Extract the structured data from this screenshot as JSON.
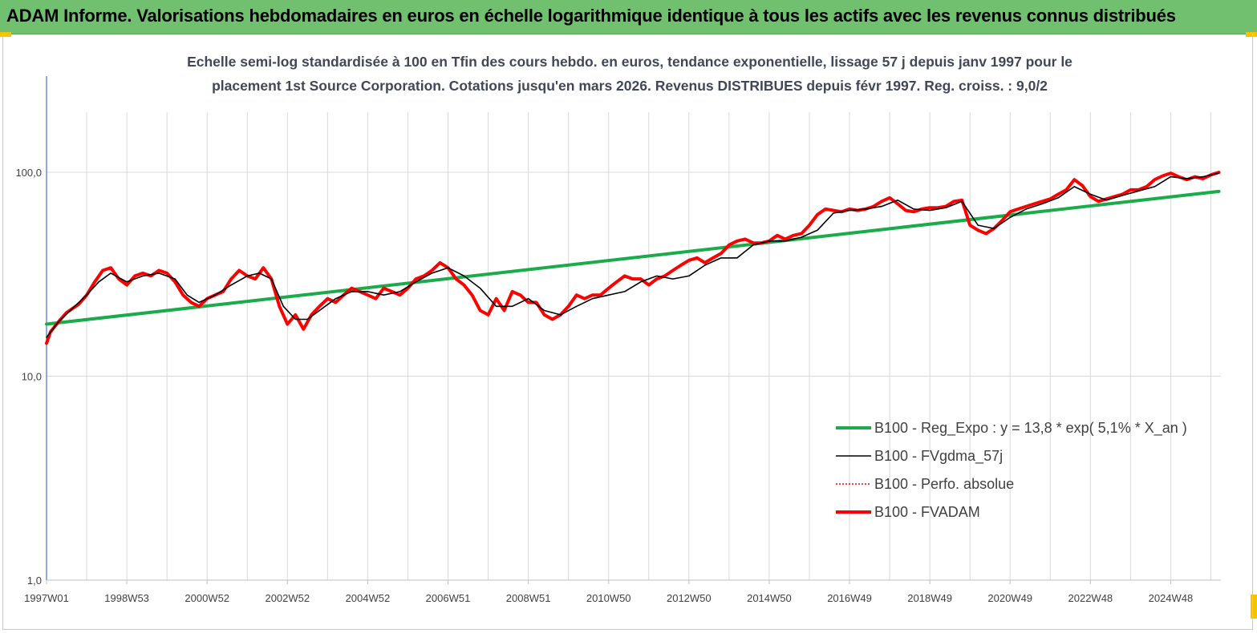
{
  "header": {
    "title": "ADAM Informe. Valorisations hebdomadaires en euros en échelle logarithmique identique à tous les actifs avec les revenus connus distribués"
  },
  "chart_data": {
    "type": "line",
    "title_line1": "Echelle semi-log standardisée à 100 en Tfin des cours hebdo. en euros, tendance exponentielle, lissage 57 j depuis janv 1997 pour le",
    "title_line2": "placement 1st Source Corporation. Cotations jusqu'en mars 2026. Revenus DISTRIBUES depuis févr 1997. Reg. croiss. : 9,0/2",
    "y_scale": "log",
    "ylim": [
      1,
      180
    ],
    "y_ticks": [
      {
        "value": 1,
        "label": "1,0"
      },
      {
        "value": 10,
        "label": "10,0"
      },
      {
        "value": 100,
        "label": "100,0"
      }
    ],
    "xlim": [
      1997.0,
      2026.25
    ],
    "x_ticks": [
      {
        "x": 1997.0,
        "label": "1997W01"
      },
      {
        "x": 1999.0,
        "label": "1998W53"
      },
      {
        "x": 2001.0,
        "label": "2000W52"
      },
      {
        "x": 2003.0,
        "label": "2002W52"
      },
      {
        "x": 2005.0,
        "label": "2004W52"
      },
      {
        "x": 2007.0,
        "label": "2006W51"
      },
      {
        "x": 2009.0,
        "label": "2008W51"
      },
      {
        "x": 2011.0,
        "label": "2010W50"
      },
      {
        "x": 2013.0,
        "label": "2012W50"
      },
      {
        "x": 2015.0,
        "label": "2014W50"
      },
      {
        "x": 2017.0,
        "label": "2016W49"
      },
      {
        "x": 2019.0,
        "label": "2018W49"
      },
      {
        "x": 2021.0,
        "label": "2020W49"
      },
      {
        "x": 2023.0,
        "label": "2022W48"
      },
      {
        "x": 2025.0,
        "label": "2024W48"
      }
    ],
    "grid_vertical_step_years": 1,
    "legend_position": "bottom-right",
    "legend": [
      {
        "name": "B100 - Reg_Expo : y = 13,8 * exp( 5,1% *  X_an )",
        "color": "#1aab4a",
        "style": "thick"
      },
      {
        "name": "B100 - FVgdma_57j",
        "color": "#000000",
        "style": "solid"
      },
      {
        "name": "B100 - Perfo. absolue",
        "color": "#ff0000",
        "style": "dotted"
      },
      {
        "name": "B100 - FVADAM",
        "color": "#ff0000",
        "style": "thick"
      }
    ],
    "series": [
      {
        "name": "B100 - Reg_Expo : y = 13,8 * exp( 5,1% *  X_an )",
        "x": [
          1997.0,
          2026.2
        ],
        "values": [
          18.0,
          80.5
        ]
      },
      {
        "name": "B100 - FVADAM",
        "x": [
          1997.0,
          1997.1,
          1997.3,
          1997.5,
          1997.8,
          1998.0,
          1998.2,
          1998.4,
          1998.6,
          1998.8,
          1999.0,
          1999.2,
          1999.4,
          1999.6,
          1999.8,
          2000.0,
          2000.2,
          2000.4,
          2000.6,
          2000.8,
          2001.0,
          2001.2,
          2001.4,
          2001.6,
          2001.8,
          2002.0,
          2002.2,
          2002.4,
          2002.6,
          2002.8,
          2003.0,
          2003.2,
          2003.4,
          2003.6,
          2003.8,
          2004.0,
          2004.2,
          2004.4,
          2004.6,
          2004.8,
          2005.0,
          2005.2,
          2005.4,
          2005.6,
          2005.8,
          2006.0,
          2006.2,
          2006.4,
          2006.6,
          2006.8,
          2007.0,
          2007.2,
          2007.4,
          2007.6,
          2007.8,
          2008.0,
          2008.2,
          2008.4,
          2008.6,
          2008.8,
          2009.0,
          2009.2,
          2009.4,
          2009.6,
          2009.8,
          2010.0,
          2010.2,
          2010.4,
          2010.6,
          2010.8,
          2011.0,
          2011.2,
          2011.4,
          2011.6,
          2011.8,
          2012.0,
          2012.2,
          2012.4,
          2012.6,
          2012.8,
          2013.0,
          2013.2,
          2013.4,
          2013.6,
          2013.8,
          2014.0,
          2014.2,
          2014.4,
          2014.6,
          2014.8,
          2015.0,
          2015.2,
          2015.4,
          2015.6,
          2015.8,
          2016.0,
          2016.2,
          2016.4,
          2016.6,
          2016.8,
          2017.0,
          2017.2,
          2017.4,
          2017.6,
          2017.8,
          2018.0,
          2018.2,
          2018.4,
          2018.6,
          2018.8,
          2019.0,
          2019.2,
          2019.4,
          2019.6,
          2019.8,
          2020.0,
          2020.2,
          2020.4,
          2020.6,
          2020.8,
          2021.0,
          2021.2,
          2021.4,
          2021.6,
          2021.8,
          2022.0,
          2022.2,
          2022.4,
          2022.6,
          2022.8,
          2023.0,
          2023.2,
          2023.4,
          2023.6,
          2023.8,
          2024.0,
          2024.2,
          2024.4,
          2024.6,
          2024.8,
          2025.0,
          2025.2,
          2025.4,
          2025.6,
          2025.8,
          2026.0,
          2026.2
        ],
        "values": [
          14.5,
          16.5,
          18.5,
          20.5,
          22.5,
          25,
          29,
          33,
          34,
          30,
          28,
          31,
          32,
          31,
          33,
          32,
          29,
          25,
          23,
          22,
          24,
          25,
          26,
          30,
          33,
          31,
          30,
          34,
          30,
          22,
          18,
          20,
          17,
          20,
          22,
          24,
          23,
          25,
          27,
          26,
          25,
          24,
          27,
          26,
          25,
          27,
          30,
          31,
          33,
          36,
          34,
          30,
          28,
          25,
          21,
          20,
          24,
          21,
          26,
          25,
          23,
          23,
          20,
          19,
          20,
          22,
          25,
          24,
          25,
          25,
          27,
          29,
          31,
          30,
          30,
          28,
          30,
          31,
          33,
          35,
          37,
          38,
          36,
          38,
          40,
          44,
          46,
          47,
          45,
          45,
          46,
          49,
          47,
          49,
          50,
          55,
          62,
          66,
          65,
          64,
          66,
          65,
          66,
          68,
          72,
          75,
          70,
          65,
          64,
          66,
          67,
          67,
          68,
          72,
          73,
          55,
          52,
          50,
          53,
          58,
          64,
          66,
          68,
          70,
          72,
          74,
          78,
          82,
          92,
          86,
          76,
          72,
          74,
          76,
          78,
          82,
          82,
          85,
          92,
          96,
          99,
          95,
          92,
          95,
          93,
          97,
          100
        ]
      },
      {
        "name": "B100 - FVgdma_57j",
        "x": [
          1997.0,
          1997.3,
          1997.7,
          1998.0,
          1998.3,
          1998.6,
          1999.0,
          1999.4,
          1999.8,
          2000.2,
          2000.5,
          2000.8,
          2001.2,
          2001.6,
          2002.0,
          2002.3,
          2002.6,
          2002.9,
          2003.2,
          2003.5,
          2003.8,
          2004.2,
          2004.6,
          2005.0,
          2005.4,
          2005.8,
          2006.2,
          2006.6,
          2007.0,
          2007.4,
          2007.8,
          2008.2,
          2008.6,
          2009.0,
          2009.4,
          2009.8,
          2010.2,
          2010.6,
          2011.0,
          2011.4,
          2011.8,
          2012.2,
          2012.6,
          2013.0,
          2013.4,
          2013.8,
          2014.2,
          2014.6,
          2015.0,
          2015.4,
          2015.8,
          2016.2,
          2016.6,
          2017.0,
          2017.4,
          2017.8,
          2018.2,
          2018.6,
          2019.0,
          2019.4,
          2019.8,
          2020.2,
          2020.6,
          2021.0,
          2021.4,
          2021.8,
          2022.2,
          2022.6,
          2023.0,
          2023.4,
          2023.8,
          2024.2,
          2024.6,
          2025.0,
          2025.4,
          2025.8,
          2026.2
        ],
        "values": [
          15.5,
          18.5,
          22,
          25,
          29,
          32,
          29,
          31,
          32,
          30,
          25,
          23,
          25,
          28,
          31,
          32,
          30,
          22,
          19,
          19,
          21,
          24,
          26,
          26,
          25,
          26,
          29,
          32,
          34,
          31,
          27,
          22,
          22,
          24,
          21,
          20,
          22,
          24,
          25,
          26,
          29,
          31,
          30,
          31,
          35,
          38,
          38,
          44,
          46,
          46,
          48,
          52,
          63,
          65,
          66,
          68,
          73,
          66,
          65,
          67,
          72,
          55,
          53,
          60,
          66,
          70,
          75,
          85,
          78,
          73,
          77,
          81,
          85,
          95,
          93,
          95,
          99
        ]
      }
    ]
  }
}
